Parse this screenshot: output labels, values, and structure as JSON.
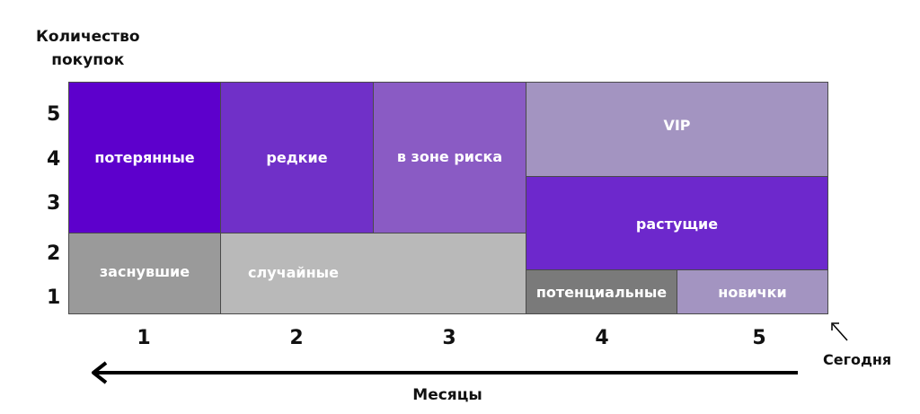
{
  "y_axis": {
    "label_line1": "Количество",
    "label_line2": "покупок",
    "ticks": [
      "5",
      "4",
      "3",
      "2",
      "1"
    ]
  },
  "x_axis": {
    "label": "Месяцы",
    "ticks": [
      "1",
      "2",
      "3",
      "4",
      "5"
    ],
    "today_label": "Сегодня"
  },
  "segments": {
    "lost": {
      "label": "потерянные",
      "color": "#5d00cc"
    },
    "rare": {
      "label": "редкие",
      "color": "#7030c8"
    },
    "at_risk": {
      "label": "в зоне риска",
      "color": "#8a5bc4"
    },
    "vip": {
      "label": "VIP",
      "color": "#a394c1"
    },
    "dormant": {
      "label": "заснувшие",
      "color": "#9a9a9a"
    },
    "occasional": {
      "label": "случайные",
      "color": "#b9b9b9"
    },
    "growing": {
      "label": "растущие",
      "color": "#6d28cc"
    },
    "potential": {
      "label": "потенциальные",
      "color": "#7a7a7a"
    },
    "newbies": {
      "label": "новички",
      "color": "#a394c1"
    }
  }
}
